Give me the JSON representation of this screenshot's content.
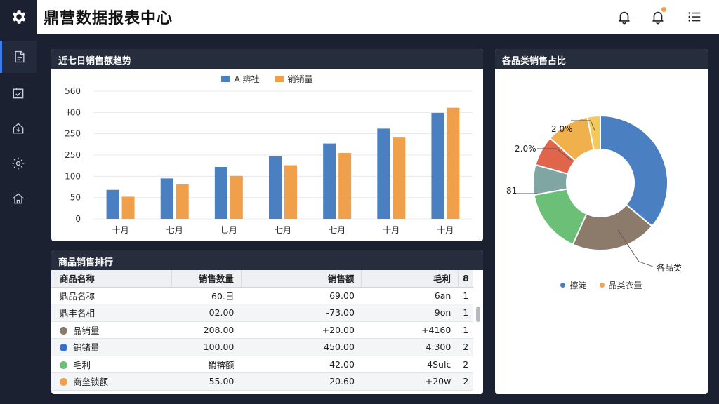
{
  "app": {
    "title": "鼎营数据报表中心",
    "accent": "#3c7be8"
  },
  "header_icons": [
    "bell-icon",
    "notification-icon",
    "list-icon"
  ],
  "sidebar": {
    "items": [
      {
        "icon": "report-icon",
        "active": true
      },
      {
        "icon": "task-icon",
        "active": false
      },
      {
        "icon": "home-export-icon",
        "active": false
      },
      {
        "icon": "settings-icon",
        "active": false
      },
      {
        "icon": "house-icon",
        "active": false
      }
    ]
  },
  "trend": {
    "title": "近七日销售额趋势",
    "legend": [
      "A 辨社",
      "销销量"
    ],
    "colors": [
      "#4a7fc1",
      "#f0a04b"
    ],
    "chart_data": {
      "type": "bar",
      "categories": [
        "十月",
        "七月",
        "乚月",
        "七月",
        "七月",
        "十月",
        "十月"
      ],
      "series": [
        {
          "name": "A 辨社",
          "values": [
            68,
            95,
            122,
            147,
            177,
            212,
            249
          ]
        },
        {
          "name": "销销量",
          "values": [
            52,
            81,
            101,
            126,
            155,
            191,
            261
          ]
        }
      ],
      "y_ticks": [
        "560",
        "ɫ00",
        "250",
        "250",
        "100",
        "50",
        "0"
      ],
      "ylim": [
        0,
        300
      ]
    }
  },
  "ranking": {
    "title": "商品销售排行",
    "columns": [
      "商品名称",
      "销售数量",
      "销售额",
      "毛利",
      "8"
    ],
    "rows": [
      {
        "name": "鼎品名称",
        "dot": "",
        "qty": "60.日",
        "amount": "69.00",
        "profit": "6an",
        "rank": "1"
      },
      {
        "name": "鼎丰名相",
        "dot": "",
        "qty": "02.00",
        "amount": "-73.00",
        "profit": "9on",
        "rank": "1"
      },
      {
        "name": "品销量",
        "dot": "#8c7b6b",
        "qty": "208.00",
        "amount": "+20.00",
        "profit": "+4160",
        "rank": "1"
      },
      {
        "name": "销锗量",
        "dot": "#3c6fc4",
        "qty": "100.00",
        "amount": "450.00",
        "profit": "4.300",
        "rank": "2"
      },
      {
        "name": "毛利",
        "dot": "#6cbf77",
        "qty": "销锛额",
        "amount": "-42.00",
        "profit": "-4Sulc",
        "rank": "2"
      },
      {
        "name": "商垒锁额",
        "dot": "#f0a04b",
        "qty": "55.00",
        "amount": "20.60",
        "profit": "+20w",
        "rank": "2"
      }
    ]
  },
  "share": {
    "title": "各品类销售占比",
    "chart_data": {
      "type": "pie",
      "donut": true,
      "slices": [
        {
          "value": 35,
          "color": "#4a7fc1"
        },
        {
          "value": 20,
          "color": "#8c7b6b"
        },
        {
          "value": 15,
          "color": "#6cbf77"
        },
        {
          "value": 7,
          "color": "#7fa6a3"
        },
        {
          "value": 7,
          "color": "#e0654b"
        },
        {
          "value": 10,
          "color": "#f0b04b"
        },
        {
          "value": 3,
          "color": "#f5c85a"
        }
      ],
      "labels": [
        "2.0%",
        "2.0%",
        "81",
        "各品类"
      ],
      "legend": [
        {
          "label": "擦淀",
          "color": "#4a7fc1"
        },
        {
          "label": "品类衣量",
          "color": "#f0a04b"
        }
      ]
    }
  }
}
